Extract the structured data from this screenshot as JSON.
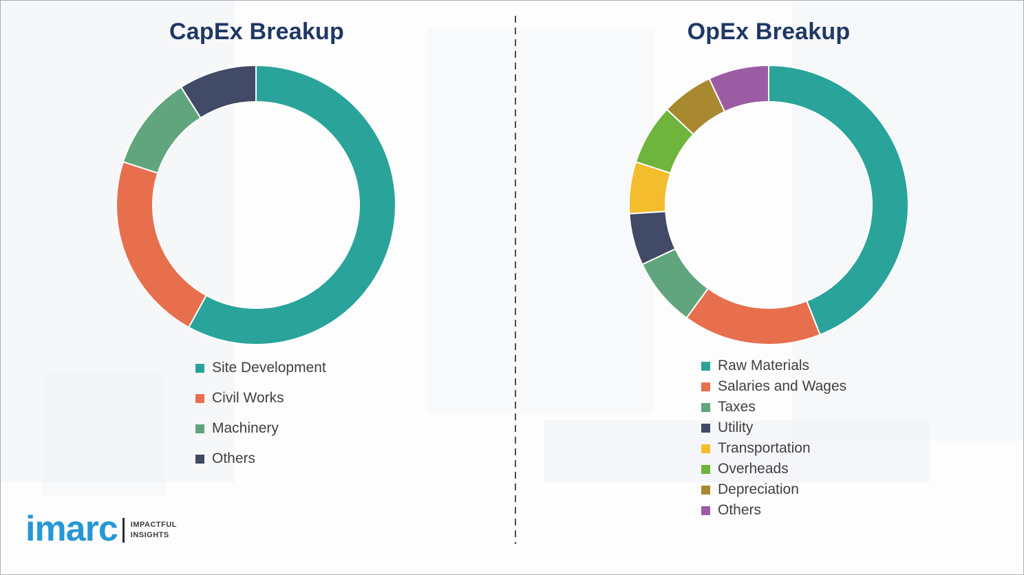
{
  "theme": {
    "title_color": "#1f3864",
    "legend_text_color": "#404040",
    "background": "#fdfdfe"
  },
  "chart_data": [
    {
      "type": "pie",
      "subtype": "donut",
      "title": "CapEx Breakup",
      "labels": [
        "Site Development",
        "Civil Works",
        "Machinery",
        "Others"
      ],
      "values": [
        58,
        22,
        11,
        9
      ],
      "colors": [
        "#2aa49a",
        "#e76f4e",
        "#61a57e",
        "#414a66"
      ],
      "legend_position": "bottom-left",
      "data_labels": false
    },
    {
      "type": "pie",
      "subtype": "donut",
      "title": "OpEx Breakup",
      "labels": [
        "Raw Materials",
        "Salaries and Wages",
        "Taxes",
        "Utility",
        "Transportation",
        "Overheads",
        "Depreciation",
        "Others"
      ],
      "values": [
        44,
        16,
        8,
        6,
        6,
        7,
        6,
        7
      ],
      "colors": [
        "#2aa49a",
        "#e76f4e",
        "#61a57e",
        "#414a66",
        "#f3bd2e",
        "#6eb43d",
        "#a8892f",
        "#9c5ca4"
      ],
      "legend_position": "bottom-left",
      "data_labels": false
    }
  ],
  "logo": {
    "brand": "imarc",
    "tagline_line1": "IMPACTFUL",
    "tagline_line2": "INSIGHTS",
    "brand_color": "#2598d4"
  }
}
